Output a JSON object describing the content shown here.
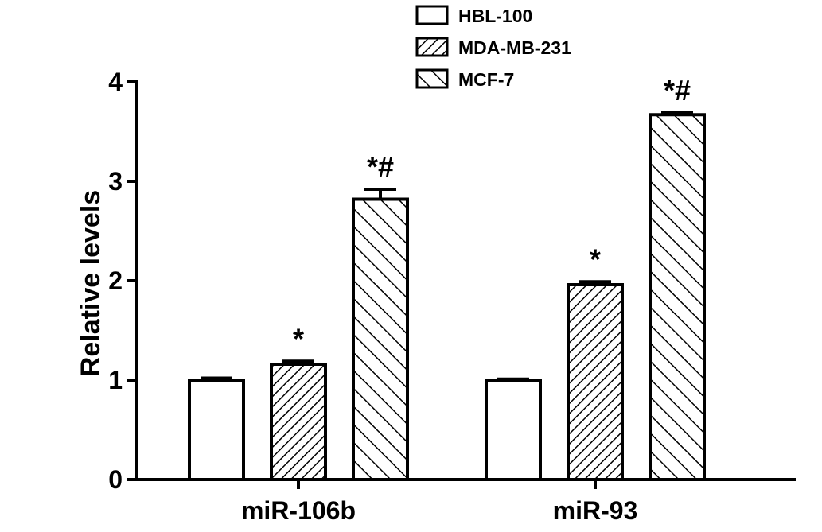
{
  "chart_data": {
    "type": "bar",
    "title": "",
    "xlabel": "",
    "ylabel": "Relative levels",
    "ylim": [
      0,
      4
    ],
    "yticks": [
      "0",
      "1",
      "2",
      "3",
      "4"
    ],
    "categories": [
      "miR-106b",
      "miR-93"
    ],
    "series": [
      {
        "name": "HBL-100",
        "pattern": "none",
        "values": [
          1.0,
          1.0
        ],
        "errors": [
          0.02,
          0.01
        ],
        "annotations": [
          "",
          ""
        ]
      },
      {
        "name": "MDA-MB-231",
        "pattern": "dense-diagonal",
        "values": [
          1.16,
          1.96
        ],
        "errors": [
          0.03,
          0.03
        ],
        "annotations": [
          "*",
          "*"
        ]
      },
      {
        "name": "MCF-7",
        "pattern": "sparse-diagonal",
        "values": [
          2.82,
          3.67
        ],
        "errors": [
          0.1,
          0.02
        ],
        "annotations": [
          "*#",
          "*#"
        ]
      }
    ],
    "legend_position": "top",
    "grid": false,
    "colors": {
      "bar_fill": "#ffffff",
      "stroke": "#000000"
    }
  }
}
